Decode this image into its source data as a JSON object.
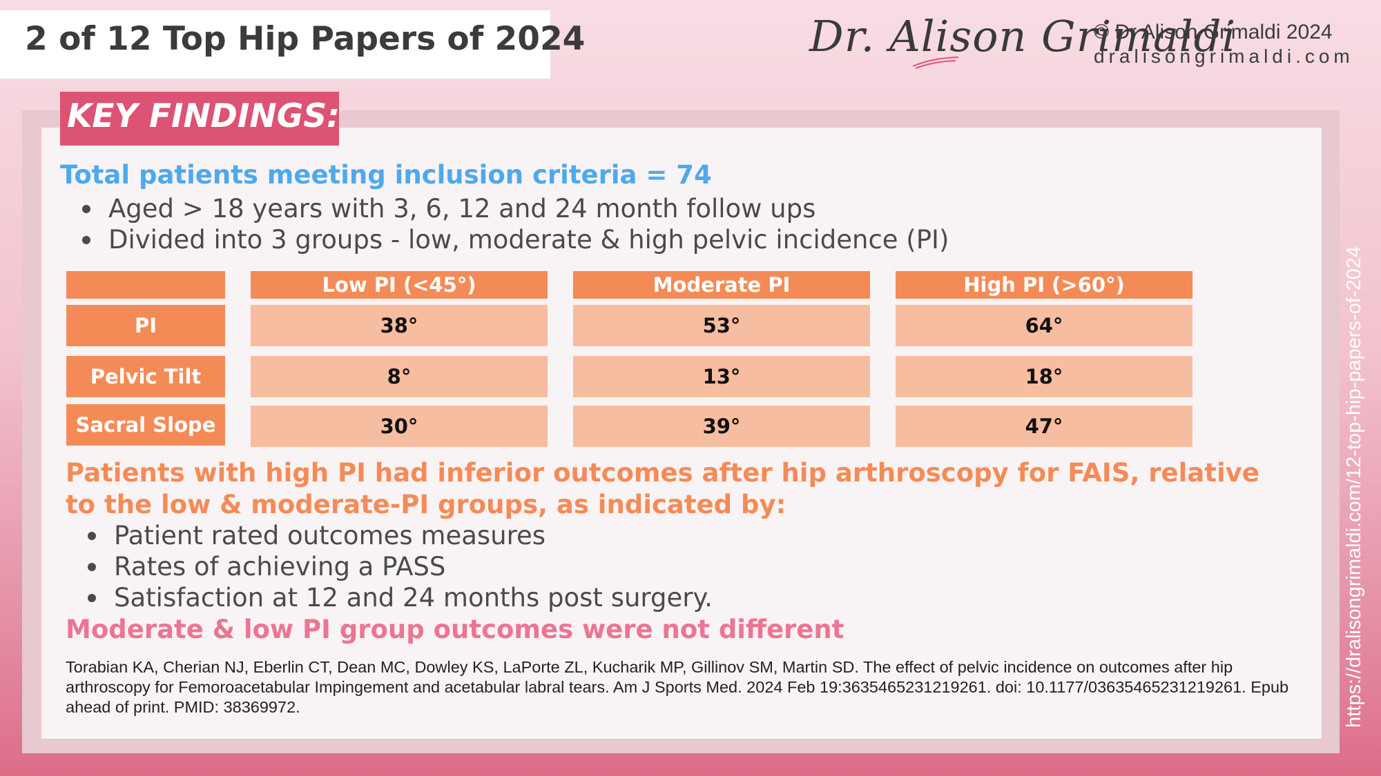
{
  "header": {
    "title": "2 of 12 Top Hip Papers of 2024",
    "brand": "Dr. Alison Grimaldi",
    "copyright": "© Dr Alison Grimaldi 2024",
    "website": "dralisongrimaldi.com"
  },
  "key_findings_label": "KEY FINDINGS:",
  "total_line": "Total patients meeting inclusion criteria = 74",
  "inclusion_bullets": [
    "Aged > 18 years with 3, 6, 12 and 24 month follow ups",
    "Divided into 3 groups - low, moderate & high pelvic incidence (PI)"
  ],
  "table": {
    "columns": [
      "",
      "Low PI (<45°)",
      "Moderate PI",
      "High PI (>60°)"
    ],
    "rows": [
      {
        "label": "PI",
        "values": [
          "38°",
          "53°",
          "64°"
        ]
      },
      {
        "label": "Pelvic Tilt",
        "values": [
          "8°",
          "13°",
          "18°"
        ]
      },
      {
        "label": "Sacral Slope",
        "values": [
          "30°",
          "39°",
          "47°"
        ]
      }
    ]
  },
  "outcome_statement": "Patients with high PI had inferior outcomes after hip arthroscopy for FAIS, relative to the low & moderate-PI groups, as indicated by:",
  "outcome_bullets": [
    "Patient rated outcomes measures",
    "Rates of achieving a PASS",
    "Satisfaction at 12 and 24 months post surgery."
  ],
  "moderate_statement": "Moderate & low PI group outcomes were not different",
  "citation": "Torabian KA, Cherian NJ, Eberlin CT, Dean MC, Dowley KS, LaPorte ZL, Kucharik MP, Gillinov SM, Martin SD. The effect of pelvic incidence on outcomes after hip arthroscopy for Femoroacetabular Impingement and acetabular labral tears. Am J Sports Med. 2024 Feb 19:3635465231219261. doi: 10.1177/03635465231219261. Epub ahead of print. PMID: 38369972.",
  "side_url": "https://dralisongrimaldi.com/12-top-hip-papers-of-2024",
  "colors": {
    "accent_pink": "#dc5374",
    "table_orange": "#f48b57",
    "table_peach": "#f7bda0",
    "blue_heading": "#4ea9ec",
    "pink_text": "#ec7592"
  }
}
